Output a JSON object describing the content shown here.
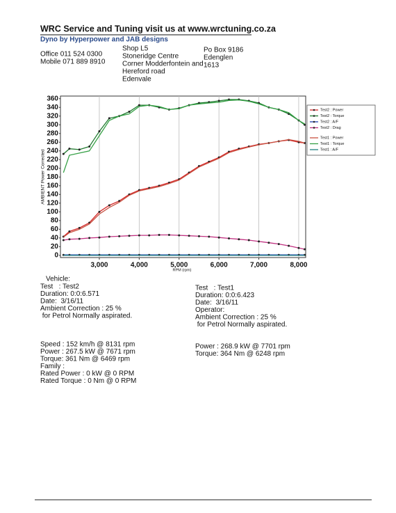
{
  "header": {
    "title": "WRC Service and Tuning visit us at www.wrctuning.co.za",
    "subtitle": "Dyno by Hyperpower and JAB designs",
    "contact": [
      "Office 011 524 0300",
      "Mobile 071 889 8910"
    ],
    "address": [
      "Shop L5",
      "Stoneridge Centre",
      "Corner Modderfontein and",
      "Hereford road",
      "Edenvale"
    ],
    "postal": [
      "Po Box 9186",
      "Edenglen",
      "1613"
    ]
  },
  "chart_data": {
    "type": "line",
    "y_label": "AMBIENT Power Corrected",
    "x_label": "RPM (rpm)",
    "x": [
      2100,
      2250,
      2500,
      2750,
      3000,
      3250,
      3500,
      3750,
      4000,
      4250,
      4500,
      4750,
      5000,
      5250,
      5500,
      5750,
      6000,
      6250,
      6500,
      6750,
      7000,
      7250,
      7500,
      7750,
      8000,
      8150
    ],
    "xlim": [
      2025,
      8175
    ],
    "ylim": [
      -5,
      366
    ],
    "xticks": [
      {
        "value": 3000,
        "label": "3,000"
      },
      {
        "value": 4000,
        "label": "4,000"
      },
      {
        "value": 5000,
        "label": "5,000"
      },
      {
        "value": 6000,
        "label": "6,000"
      },
      {
        "value": 7000,
        "label": "7,000"
      },
      {
        "value": 8000,
        "label": "8,000"
      }
    ],
    "yticks": [
      0,
      20,
      40,
      60,
      80,
      100,
      120,
      140,
      160,
      180,
      200,
      220,
      240,
      260,
      280,
      300,
      320,
      340,
      360
    ],
    "grid": "x",
    "series": [
      {
        "name": "Test2 : Power",
        "color": "#d42a2a",
        "marker": true,
        "values": [
          43,
          55,
          63,
          75,
          100,
          115,
          125,
          140,
          150,
          155,
          160,
          167,
          175,
          190,
          205,
          215,
          225,
          238,
          245,
          250,
          255,
          258,
          262,
          265,
          260,
          258
        ]
      },
      {
        "name": "Test2 : Torque",
        "color": "#1f7a2e",
        "marker": true,
        "values": [
          233,
          245,
          243,
          250,
          285,
          315,
          320,
          330,
          345,
          345,
          340,
          335,
          338,
          345,
          350,
          352,
          355,
          358,
          358,
          355,
          350,
          340,
          335,
          325,
          310,
          300
        ]
      },
      {
        "name": "Test2 : A/F",
        "color": "#2040b0",
        "marker": true,
        "values": [
          1,
          1,
          1,
          1,
          1,
          1,
          1,
          1,
          1,
          1,
          1,
          1,
          1,
          1,
          1,
          1,
          1,
          1,
          1,
          1,
          1,
          1,
          1,
          1,
          1,
          1
        ]
      },
      {
        "name": "Test2 : Drag",
        "color": "#c03080",
        "marker": true,
        "values": [
          35,
          37,
          38,
          40,
          41,
          43,
          44,
          45,
          46,
          46,
          47,
          47,
          46,
          45,
          44,
          43,
          41,
          39,
          37,
          35,
          32,
          29,
          26,
          22,
          17,
          14
        ]
      },
      {
        "name": "Test1 : Power",
        "color": "#c85040",
        "marker": false,
        "values": [
          42,
          52,
          60,
          72,
          95,
          110,
          122,
          138,
          148,
          153,
          158,
          165,
          173,
          188,
          203,
          213,
          223,
          236,
          243,
          249,
          254,
          258,
          262,
          266,
          262,
          258
        ]
      },
      {
        "name": "Test1 : Torque",
        "color": "#35a045",
        "marker": false,
        "values": [
          190,
          230,
          235,
          240,
          275,
          310,
          320,
          325,
          342,
          345,
          342,
          335,
          337,
          345,
          348,
          350,
          352,
          356,
          357,
          354,
          348,
          340,
          335,
          328,
          310,
          302
        ]
      },
      {
        "name": "Test1 : A/F",
        "color": "#208080",
        "marker": false,
        "values": [
          0,
          0,
          0,
          0,
          0,
          0,
          0,
          0,
          0,
          0,
          0,
          0,
          0,
          0,
          0,
          0,
          0,
          0,
          0,
          0,
          0,
          0,
          0,
          0,
          0,
          0
        ]
      }
    ]
  },
  "info": {
    "vehicle": "Vehicle:",
    "test2": [
      "Test   : Test2",
      "Duration: 0:0:6.571",
      "Date:  3/16/11",
      "Ambient Correction : 25 %",
      " for Petrol Normally aspirated."
    ],
    "test1": [
      "Test   : Test1",
      "Duration: 0:0:6.423",
      "Date:  3/16/11",
      "Operator:",
      "Ambient Correction : 25 %",
      " for Petrol Normally aspirated."
    ],
    "summary2": [
      "Speed : 152 km/h @ 8131 rpm",
      "Power : 267.5 kW @ 7671 rpm",
      "Torque: 361 Nm @ 6469 rpm",
      "Family :",
      "Rated Power : 0 kW @ 0 RPM",
      "Rated Torque : 0 Nm @ 0 RPM"
    ],
    "summary1": [
      "Power : 268.9 kW @ 7701 rpm",
      "Torque: 364 Nm @ 6248 rpm"
    ]
  }
}
